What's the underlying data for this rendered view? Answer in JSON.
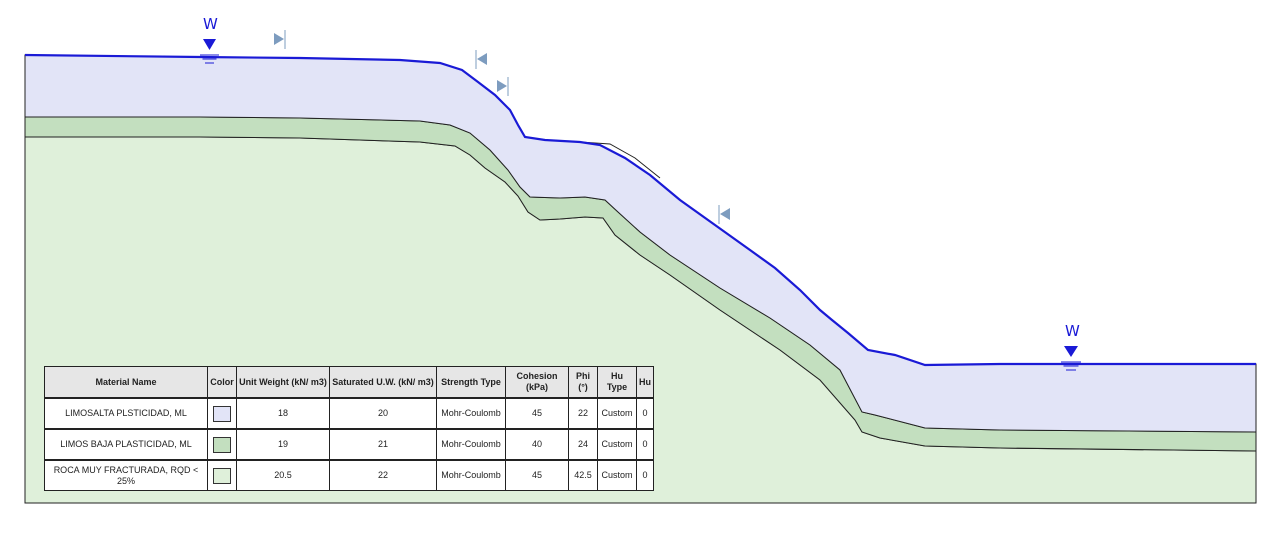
{
  "water_label": "W",
  "colors": {
    "material_1": "#e2e4f7",
    "material_2": "#c3dfbf",
    "material_3": "#dff0da",
    "water": "#1a1ad6",
    "marker": "#7d9cbf"
  },
  "legend": {
    "headers": {
      "material_name": "Material Name",
      "color": "Color",
      "unit_weight": "Unit Weight (kN/ m3)",
      "saturated_uw": "Saturated U.W. (kN/ m3)",
      "strength_type": "Strength Type",
      "cohesion": "Cohesion (kPa)",
      "phi": "Phi (°)",
      "hu_type": "Hu Type",
      "hu": "Hu"
    },
    "rows": [
      {
        "name": "LIMOSALTA PLSTICIDAD, ML",
        "unit_weight": "18",
        "saturated_uw": "20",
        "strength_type": "Mohr-Coulomb",
        "cohesion": "45",
        "phi": "22",
        "hu_type": "Custom",
        "hu": "0"
      },
      {
        "name": "LIMOS BAJA PLASTICIDAD, ML",
        "unit_weight": "19",
        "saturated_uw": "21",
        "strength_type": "Mohr-Coulomb",
        "cohesion": "40",
        "phi": "24",
        "hu_type": "Custom",
        "hu": "0"
      },
      {
        "name": "ROCA MUY FRACTURADA, RQD < 25%",
        "unit_weight": "20.5",
        "saturated_uw": "22",
        "strength_type": "Mohr-Coulomb",
        "cohesion": "45",
        "phi": "42.5",
        "hu_type": "Custom",
        "hu": "0"
      }
    ]
  }
}
